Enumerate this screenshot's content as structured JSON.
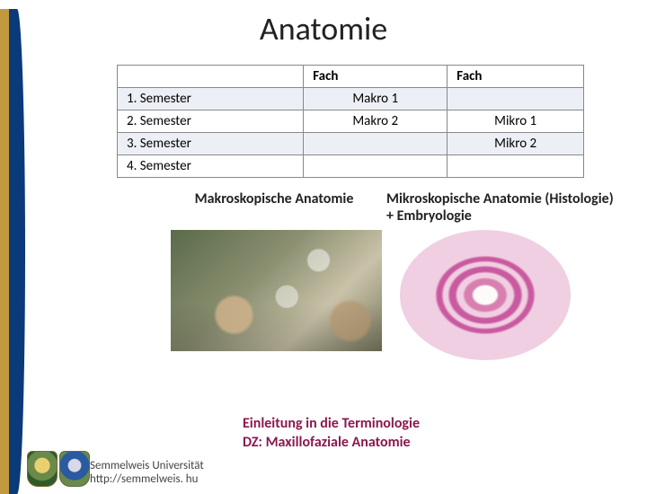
{
  "title": "Anatomie",
  "table": {
    "header": {
      "col1": "",
      "col2": "Fach",
      "col3": "Fach"
    },
    "rows": [
      {
        "sem": "1. Semester",
        "c2": "Makro 1",
        "c3": ""
      },
      {
        "sem": "2. Semester",
        "c2": "Makro 2",
        "c3": "Mikro 1"
      },
      {
        "sem": "3. Semester",
        "c2": "",
        "c3": "Mikro 2"
      },
      {
        "sem": "4. Semester",
        "c2": "",
        "c3": ""
      }
    ]
  },
  "captions": {
    "left": "Makroskopische Anatomie",
    "right": "Mikroskopische Anatomie (Histologie) + Embryologie"
  },
  "terminologie": {
    "line1": "Einleitung in die Terminologie",
    "line2": "DZ: Maxillofaziale Anatomie"
  },
  "footer": {
    "line1": "Semmelweis Universität",
    "line2": "http://semmelweis. hu"
  },
  "colors": {
    "accent_gold": "#c19a3f",
    "accent_blue": "#0b3a7a",
    "term_color": "#8a1850",
    "row_shade": "#ecf0f6",
    "border": "#888888",
    "text": "#222222"
  }
}
